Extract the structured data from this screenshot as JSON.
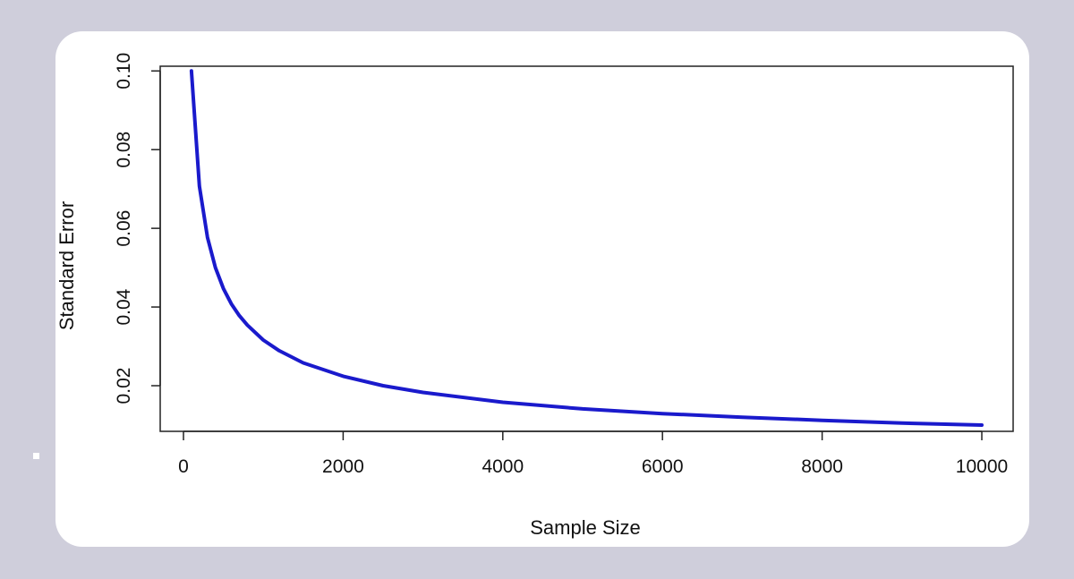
{
  "chart_data": {
    "type": "line",
    "title": "",
    "xlabel": "Sample Size",
    "ylabel": "Standard Error",
    "xlim": [
      0,
      10000
    ],
    "ylim": [
      0.0084,
      0.1012
    ],
    "x_ticks": [
      0,
      2000,
      4000,
      6000,
      8000,
      10000
    ],
    "x_tick_labels": [
      "0",
      "2000",
      "4000",
      "6000",
      "8000",
      "10000"
    ],
    "y_ticks": [
      0.02,
      0.04,
      0.06,
      0.08,
      0.1
    ],
    "y_tick_labels": [
      "0.02",
      "0.04",
      "0.06",
      "0.08",
      "0.10"
    ],
    "grid": false,
    "legend": "none",
    "series": [
      {
        "color": "#1a1acc",
        "x": [
          100,
          200,
          300,
          400,
          500,
          600,
          700,
          800,
          1000,
          1200,
          1500,
          2000,
          2500,
          3000,
          4000,
          5000,
          6000,
          7000,
          8000,
          9000,
          10000
        ],
        "y": [
          0.1,
          0.0707,
          0.0577,
          0.05,
          0.0447,
          0.0408,
          0.0378,
          0.0354,
          0.0316,
          0.0289,
          0.0258,
          0.0224,
          0.02,
          0.0183,
          0.0158,
          0.0141,
          0.0129,
          0.012,
          0.0112,
          0.0105,
          0.01
        ]
      }
    ]
  }
}
